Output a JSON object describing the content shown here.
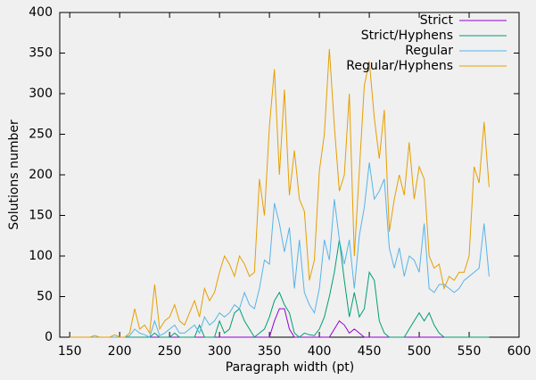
{
  "chart_data": {
    "type": "line",
    "xlabel": "Paragraph width (pt)",
    "ylabel": "Solutions number",
    "x": [
      150,
      155,
      160,
      165,
      170,
      175,
      180,
      185,
      190,
      195,
      200,
      205,
      210,
      215,
      220,
      225,
      230,
      235,
      240,
      245,
      250,
      255,
      260,
      265,
      270,
      275,
      280,
      285,
      290,
      295,
      300,
      305,
      310,
      315,
      320,
      325,
      330,
      335,
      340,
      345,
      350,
      355,
      360,
      365,
      370,
      375,
      380,
      385,
      390,
      395,
      400,
      405,
      410,
      415,
      420,
      425,
      430,
      435,
      440,
      445,
      450,
      455,
      460,
      465,
      470,
      475,
      480,
      485,
      490,
      495,
      500,
      505,
      510,
      515,
      520,
      525,
      530,
      535,
      540,
      545,
      550,
      555,
      560,
      565,
      570
    ],
    "series": [
      {
        "name": "Strict",
        "color": "#9400d3",
        "values": [
          0,
          0,
          0,
          0,
          0,
          0,
          0,
          0,
          0,
          0,
          0,
          0,
          0,
          0,
          0,
          0,
          0,
          0,
          0,
          0,
          0,
          0,
          0,
          0,
          0,
          0,
          0,
          0,
          0,
          0,
          0,
          0,
          0,
          0,
          0,
          0,
          0,
          0,
          0,
          0,
          0,
          20,
          35,
          35,
          10,
          0,
          0,
          0,
          0,
          0,
          0,
          0,
          0,
          10,
          20,
          15,
          5,
          10,
          5,
          0,
          0,
          0,
          0,
          0,
          0,
          0,
          0,
          0,
          0,
          0,
          0,
          0,
          0,
          0,
          0,
          0,
          0,
          0,
          0,
          0,
          0,
          0,
          0,
          0,
          0
        ]
      },
      {
        "name": "Strict/Hyphens",
        "color": "#009e73",
        "values": [
          0,
          0,
          0,
          0,
          0,
          0,
          0,
          0,
          0,
          0,
          0,
          0,
          0,
          0,
          0,
          0,
          0,
          5,
          0,
          0,
          0,
          5,
          0,
          0,
          0,
          0,
          15,
          0,
          0,
          0,
          20,
          5,
          10,
          30,
          35,
          20,
          10,
          0,
          5,
          10,
          25,
          45,
          55,
          40,
          30,
          5,
          0,
          5,
          3,
          2,
          10,
          25,
          50,
          80,
          120,
          70,
          25,
          55,
          25,
          35,
          80,
          70,
          20,
          5,
          0,
          0,
          0,
          0,
          10,
          20,
          30,
          20,
          30,
          15,
          5,
          0,
          0,
          0,
          0,
          0,
          0,
          0,
          0,
          0,
          0
        ]
      },
      {
        "name": "Regular",
        "color": "#56b4e9",
        "values": [
          0,
          0,
          0,
          0,
          0,
          0,
          0,
          0,
          0,
          0,
          0,
          0,
          2,
          10,
          5,
          3,
          0,
          20,
          2,
          5,
          10,
          15,
          5,
          5,
          10,
          15,
          5,
          25,
          15,
          20,
          30,
          25,
          30,
          40,
          35,
          55,
          40,
          35,
          60,
          95,
          90,
          165,
          140,
          105,
          135,
          60,
          120,
          55,
          40,
          30,
          60,
          120,
          95,
          170,
          120,
          90,
          120,
          60,
          125,
          160,
          215,
          170,
          180,
          195,
          110,
          85,
          110,
          75,
          100,
          95,
          80,
          140,
          60,
          55,
          65,
          65,
          60,
          55,
          60,
          70,
          75,
          80,
          85,
          140,
          75
        ]
      },
      {
        "name": "Regular/Hyphens",
        "color": "#e69f00",
        "values": [
          0,
          0,
          0,
          0,
          0,
          2,
          0,
          0,
          0,
          3,
          0,
          0,
          5,
          35,
          10,
          15,
          5,
          65,
          10,
          20,
          25,
          40,
          20,
          15,
          30,
          45,
          25,
          60,
          45,
          55,
          80,
          100,
          90,
          75,
          100,
          90,
          75,
          80,
          195,
          150,
          260,
          330,
          200,
          305,
          175,
          230,
          170,
          155,
          70,
          95,
          205,
          250,
          355,
          260,
          180,
          200,
          300,
          100,
          205,
          310,
          340,
          270,
          220,
          280,
          130,
          170,
          200,
          175,
          240,
          170,
          210,
          195,
          100,
          85,
          90,
          60,
          75,
          70,
          80,
          80,
          100,
          210,
          190,
          265,
          185
        ]
      }
    ],
    "xlim": [
      140,
      600
    ],
    "ylim": [
      0,
      400
    ],
    "xticks": [
      150,
      200,
      250,
      300,
      350,
      400,
      450,
      500,
      550,
      600
    ],
    "yticks": [
      0,
      50,
      100,
      150,
      200,
      250,
      300,
      350,
      400
    ],
    "legend": "upper right"
  }
}
